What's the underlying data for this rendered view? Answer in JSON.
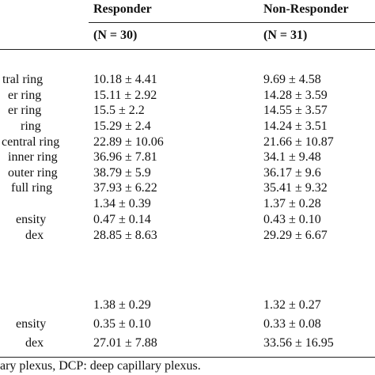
{
  "table": {
    "columns": [
      {
        "title": "Responder",
        "n": "(N = 30)"
      },
      {
        "title": "Non-Responder",
        "n": "(N = 31)"
      }
    ],
    "rows": [
      {
        "label": "tral ring",
        "values": [
          "10.18 ± 4.41",
          "9.69 ± 4.58"
        ]
      },
      {
        "label": "er ring",
        "values": [
          "15.11 ± 2.92",
          "14.28 ± 3.59"
        ]
      },
      {
        "label": "er ring",
        "values": [
          "15.5 ± 2.2",
          "14.55 ± 3.57"
        ]
      },
      {
        "label": "ring",
        "values": [
          "15.29 ± 2.4",
          "14.24 ± 3.51"
        ]
      },
      {
        "label": "central ring",
        "values": [
          "22.89 ± 10.06",
          "21.66 ± 10.87"
        ]
      },
      {
        "label": "inner ring",
        "values": [
          "36.96 ± 7.81",
          "34.1 ± 9.48"
        ]
      },
      {
        "label": "outer ring",
        "values": [
          "38.79 ± 5.9",
          "36.17 ± 9.6"
        ]
      },
      {
        "label": "full ring",
        "values": [
          "37.93 ± 6.22",
          "35.41 ± 9.32"
        ]
      },
      {
        "values": [
          "1.34 ± 0.39",
          "1.37 ± 0.28"
        ]
      },
      {
        "label": "ensity",
        "values": [
          "0.47 ± 0.14",
          "0.43 ± 0.10"
        ]
      },
      {
        "label": "dex",
        "values": [
          "28.85 ± 8.63",
          "29.29 ± 6.67"
        ]
      },
      {
        "values": [
          "1.38 ± 0.29",
          "1.32 ± 0.27"
        ]
      },
      {
        "label": "ensity",
        "values": [
          "0.35 ± 0.10",
          "0.33 ± 0.08"
        ]
      },
      {
        "label": "dex",
        "values": [
          "27.01 ± 7.88",
          "33.56 ± 16.95"
        ]
      }
    ],
    "footnote": "ary plexus, DCP: deep capillary plexus."
  }
}
